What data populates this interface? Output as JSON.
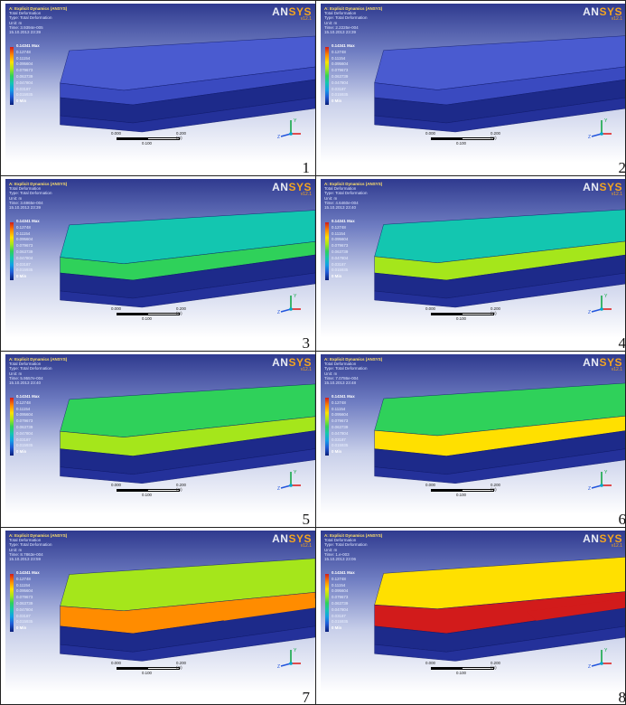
{
  "panels": [
    {
      "index": 1,
      "label": "1",
      "system": "A: Explicit Dynamics (ANSYS)",
      "result": "Total Deformation",
      "type": "Type: Total Deformation",
      "unit": "Unit: m",
      "time": "Time: 3.9394e-005",
      "date": "15.10.2013 23:39",
      "deform_level": 0.0
    },
    {
      "index": 2,
      "label": "2",
      "system": "A: Explicit Dynamics (ANSYS)",
      "result": "Total Deformation",
      "type": "Type: Total Deformation",
      "unit": "Unit: m",
      "time": "Time: 2.2225e-004",
      "date": "15.10.2013 23:39",
      "deform_level": 0.05
    },
    {
      "index": 3,
      "label": "3",
      "system": "A: Explicit Dynamics (ANSYS)",
      "result": "Total Deformation",
      "type": "Type: Total Deformation",
      "unit": "Unit: m",
      "time": "Time: 3.6965e-004",
      "date": "15.10.2013 23:39",
      "deform_level": 0.2
    },
    {
      "index": 4,
      "label": "4",
      "system": "A: Explicit Dynamics (ANSYS)",
      "result": "Total Deformation",
      "type": "Type: Total Deformation",
      "unit": "Unit: m",
      "time": "Time: 4.6460e-004",
      "date": "15.10.2013 23:40",
      "deform_level": 0.3
    },
    {
      "index": 5,
      "label": "5",
      "system": "A: Explicit Dynamics (ANSYS)",
      "result": "Total Deformation",
      "type": "Type: Total Deformation",
      "unit": "Unit: m",
      "time": "Time: 5.9557e-004",
      "date": "15.10.2013 23:40",
      "deform_level": 0.45
    },
    {
      "index": 6,
      "label": "6",
      "system": "A: Explicit Dynamics (ANSYS)",
      "result": "Total Deformation",
      "type": "Type: Total Deformation",
      "unit": "Unit: m",
      "time": "Time: 7.0786e-004",
      "date": "15.10.2013 23:48",
      "deform_level": 0.6
    },
    {
      "index": 7,
      "label": "7",
      "system": "A: Explicit Dynamics (ANSYS)",
      "result": "Total Deformation",
      "type": "Type: Total Deformation",
      "unit": "Unit: m",
      "time": "Time: 8.7863e-004",
      "date": "15.10.2013 23:59",
      "deform_level": 0.8
    },
    {
      "index": 8,
      "label": "8",
      "system": "A: Explicit Dynamics (ANSYS)",
      "result": "Total Deformation",
      "type": "Type: Total Deformation",
      "unit": "Unit: m",
      "time": "Time: 1.e-003",
      "date": "15.10.2013 23:06",
      "deform_level": 1.0
    }
  ],
  "legend": {
    "max_label": "0.14341 Max",
    "min_label": "0 Min",
    "values": [
      "0.12748",
      "0.11154",
      "0.095604",
      "0.079673",
      "0.063739",
      "0.047804",
      "0.03187",
      "0.015935"
    ]
  },
  "logo": {
    "text_a": "AN",
    "text_b": "SYS",
    "version": "v12.1"
  },
  "scale": {
    "left": "0.000",
    "right": "0.200 (m)",
    "mid": "0.100"
  },
  "triad": {
    "x": "X",
    "y": "Y",
    "z": "Z"
  },
  "colors": {
    "background_top": "#2f3a8f",
    "background_bottom": "#ffffff",
    "undeformed": "#2a3aa8",
    "max": "#d21b1b",
    "min": "#0b1f7a",
    "logo_accent": "#f2a421"
  }
}
